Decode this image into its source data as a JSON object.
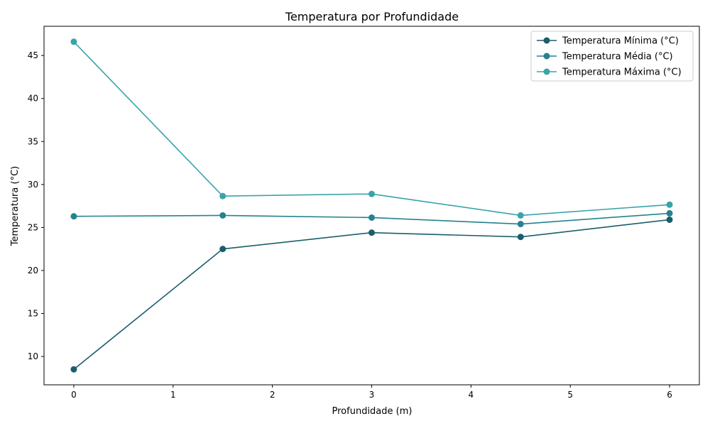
{
  "chart_data": {
    "type": "line",
    "title": "Temperatura por Profundidade",
    "xlabel": "Profundidade (m)",
    "ylabel": "Temperatura (°C)",
    "x": [
      0,
      1.5,
      3,
      4.5,
      6
    ],
    "xlim": [
      -0.3,
      6.3
    ],
    "ylim": [
      6.7,
      48.4
    ],
    "xticks": [
      0,
      1,
      2,
      3,
      4,
      5,
      6
    ],
    "yticks": [
      10,
      15,
      20,
      25,
      30,
      35,
      40,
      45
    ],
    "grid": false,
    "legend_position": "top-right",
    "series": [
      {
        "name": "Temperatura Mínima (°C)",
        "color": "#1b5e6b",
        "values": [
          8.5,
          22.5,
          24.4,
          23.9,
          25.9
        ]
      },
      {
        "name": "Temperatura Média (°C)",
        "color": "#23838f",
        "values": [
          26.3,
          26.4,
          26.15,
          25.4,
          26.65
        ]
      },
      {
        "name": "Temperatura Máxima (°C)",
        "color": "#3aa3aa",
        "values": [
          46.6,
          28.65,
          28.9,
          26.4,
          27.65
        ]
      }
    ]
  }
}
